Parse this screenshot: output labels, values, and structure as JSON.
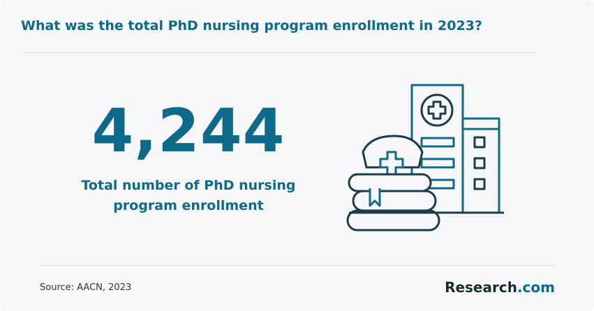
{
  "header": {
    "title": "What was the total PhD nursing program enrollment in 2023?"
  },
  "stat": {
    "value": "4,244",
    "label": [
      "Total number of PhD nursing",
      "program enrollment"
    ]
  },
  "footer": {
    "source": "Source: AACN, 2023",
    "brand": [
      "Research",
      ".com"
    ]
  }
}
